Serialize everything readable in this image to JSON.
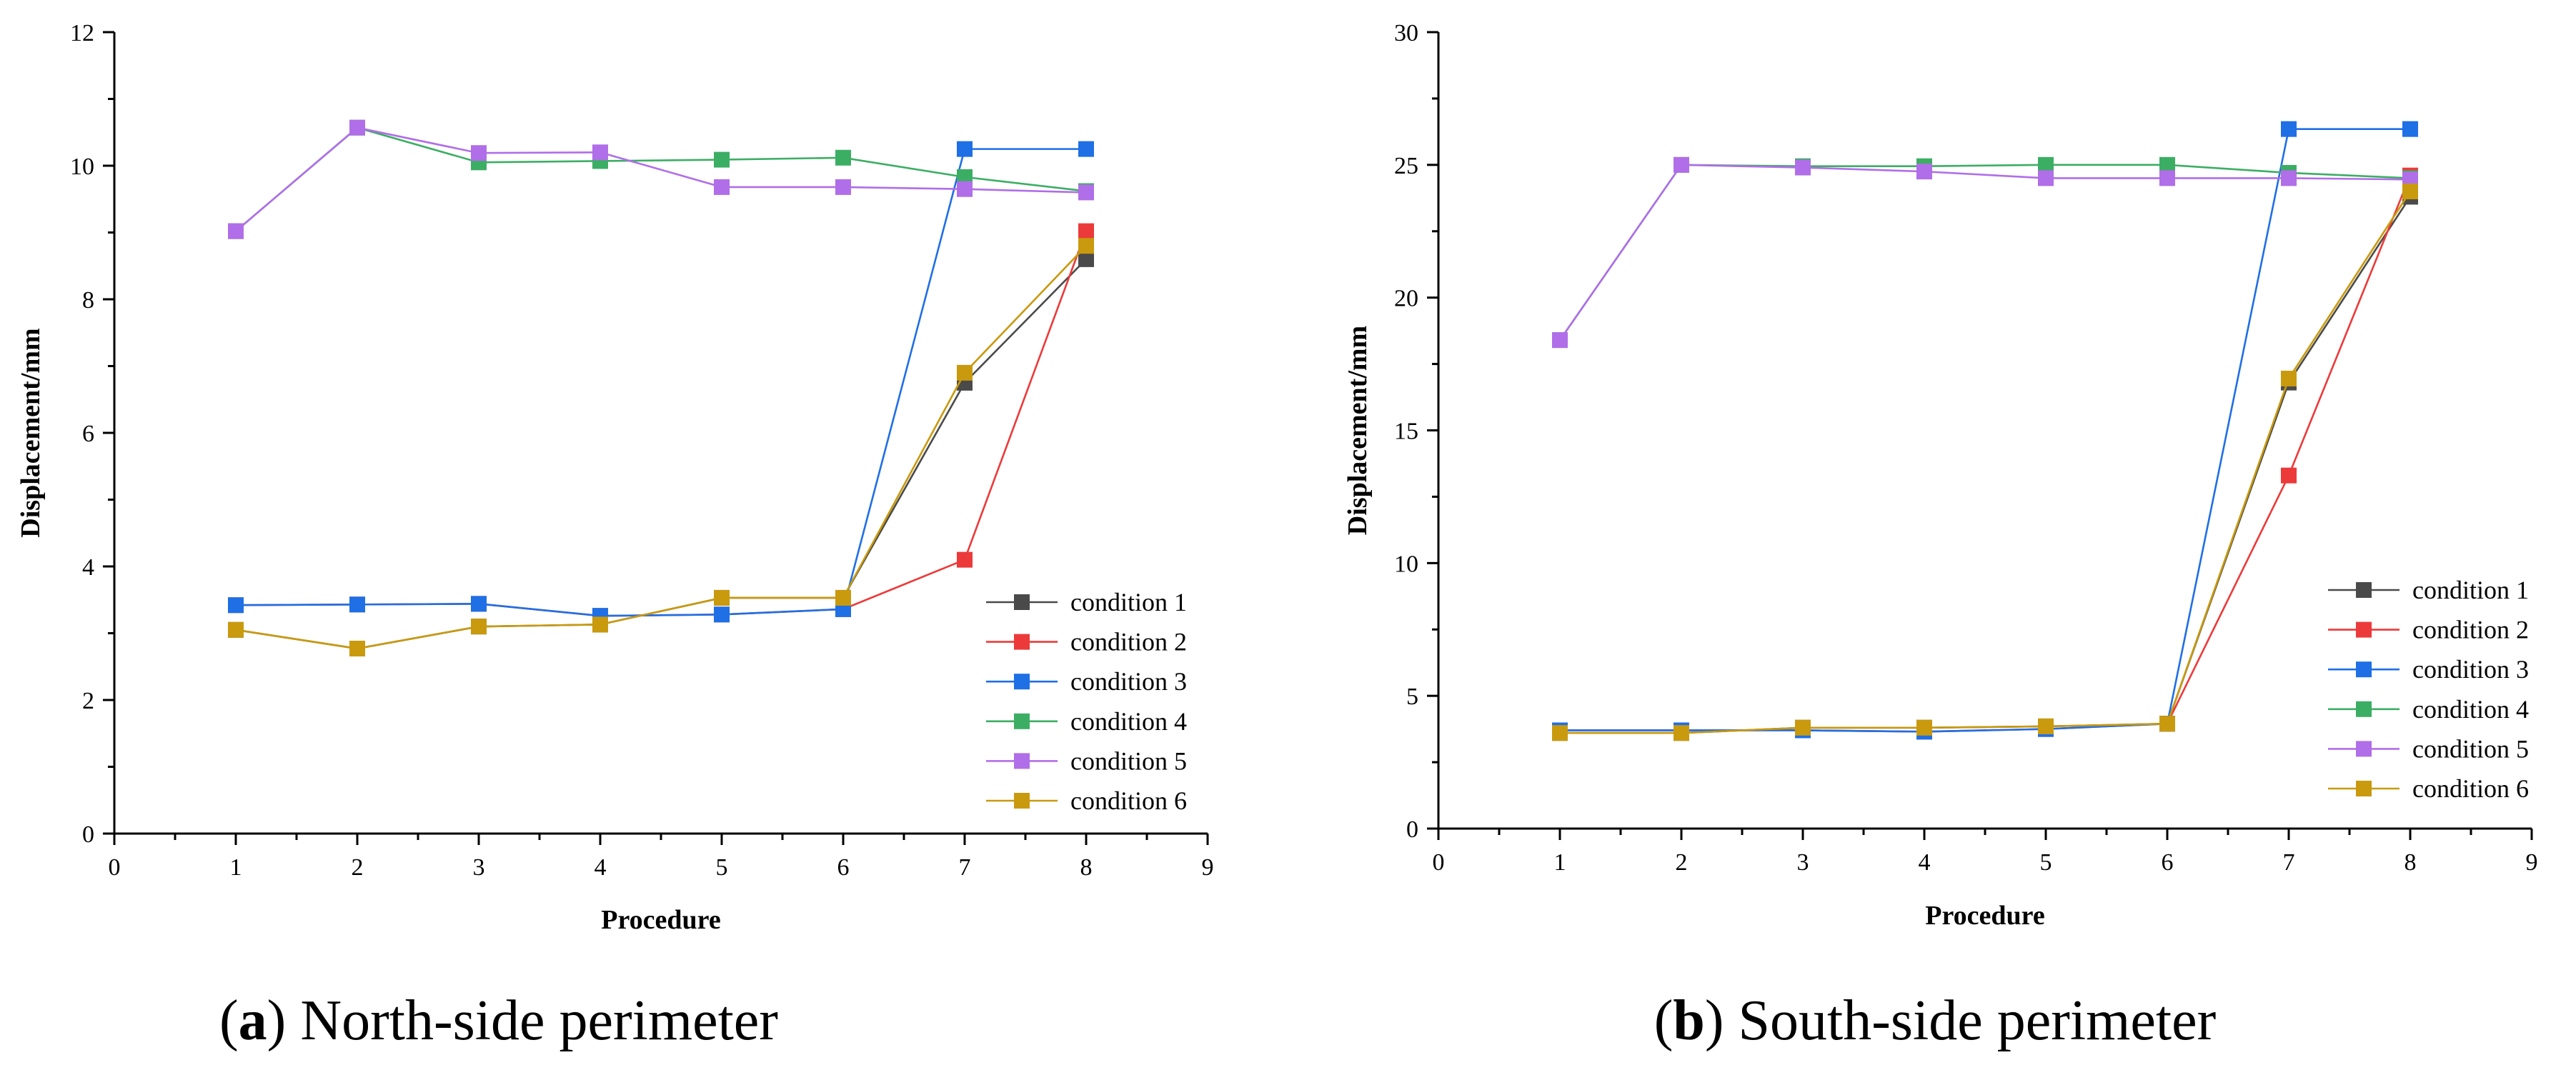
{
  "figure": {
    "panels": [
      {
        "caption_letter": "a",
        "caption_text": "North-side perimeter"
      },
      {
        "caption_letter": "b",
        "caption_text": "South-side perimeter"
      }
    ]
  },
  "colors": {
    "condition 1": "#4a4a4a",
    "condition 2": "#ec3a3a",
    "condition 3": "#1f6fe5",
    "condition 4": "#3cae64",
    "condition 5": "#b06ee8",
    "condition 6": "#c99a0e"
  },
  "chart_data": [
    {
      "type": "line",
      "title": "(a) North-side perimeter",
      "xlabel": "Procedure",
      "ylabel": "Displacement/mm",
      "xlim": [
        0,
        9
      ],
      "ylim": [
        0,
        12
      ],
      "xticks": [
        "0",
        "1",
        "2",
        "3",
        "4",
        "5",
        "6",
        "7",
        "8",
        "9"
      ],
      "yticks": [
        "0",
        "2",
        "4",
        "6",
        "8",
        "10",
        "12"
      ],
      "legend_position": "bottom-right",
      "x": [
        1,
        2,
        3,
        4,
        5,
        6,
        7,
        8
      ],
      "series": [
        {
          "name": "condition 1",
          "values": [
            3.05,
            2.77,
            3.1,
            3.13,
            3.53,
            3.53,
            6.75,
            8.6
          ]
        },
        {
          "name": "condition 2",
          "values": [
            3.42,
            3.43,
            3.44,
            3.26,
            3.28,
            3.36,
            4.1,
            9.02
          ]
        },
        {
          "name": "condition 3",
          "values": [
            3.42,
            3.43,
            3.44,
            3.26,
            3.28,
            3.36,
            10.25,
            10.25
          ]
        },
        {
          "name": "condition 4",
          "values": [
            9.02,
            10.57,
            10.05,
            10.07,
            10.09,
            10.12,
            9.83,
            9.62
          ]
        },
        {
          "name": "condition 5",
          "values": [
            9.02,
            10.57,
            10.19,
            10.2,
            9.68,
            9.68,
            9.65,
            9.6
          ]
        },
        {
          "name": "condition 6",
          "values": [
            3.05,
            2.77,
            3.1,
            3.13,
            3.53,
            3.53,
            6.9,
            8.8
          ]
        }
      ]
    },
    {
      "type": "line",
      "title": "(b) South-side perimeter",
      "xlabel": "Procedure",
      "ylabel": "Displacement/mm",
      "xlim": [
        0,
        9
      ],
      "ylim": [
        0,
        30
      ],
      "xticks": [
        "0",
        "1",
        "2",
        "3",
        "4",
        "5",
        "6",
        "7",
        "8",
        "9"
      ],
      "yticks": [
        "0",
        "5",
        "10",
        "15",
        "20",
        "25",
        "30"
      ],
      "legend_position": "bottom-right",
      "x": [
        1,
        2,
        3,
        4,
        5,
        6,
        7,
        8
      ],
      "series": [
        {
          "name": "condition 1",
          "values": [
            3.6,
            3.6,
            3.8,
            3.8,
            3.85,
            3.95,
            16.8,
            23.8
          ]
        },
        {
          "name": "condition 2",
          "values": [
            3.7,
            3.7,
            3.7,
            3.65,
            3.75,
            3.95,
            13.3,
            24.6
          ]
        },
        {
          "name": "condition 3",
          "values": [
            3.7,
            3.7,
            3.7,
            3.65,
            3.75,
            3.95,
            26.35,
            26.35
          ]
        },
        {
          "name": "condition 4",
          "values": [
            18.4,
            25.0,
            24.95,
            24.95,
            25.0,
            25.0,
            24.7,
            24.5
          ]
        },
        {
          "name": "condition 5",
          "values": [
            18.4,
            25.0,
            24.9,
            24.75,
            24.5,
            24.5,
            24.5,
            24.45
          ]
        },
        {
          "name": "condition 6",
          "values": [
            3.6,
            3.6,
            3.8,
            3.8,
            3.85,
            3.95,
            16.95,
            24.0
          ]
        }
      ]
    }
  ]
}
